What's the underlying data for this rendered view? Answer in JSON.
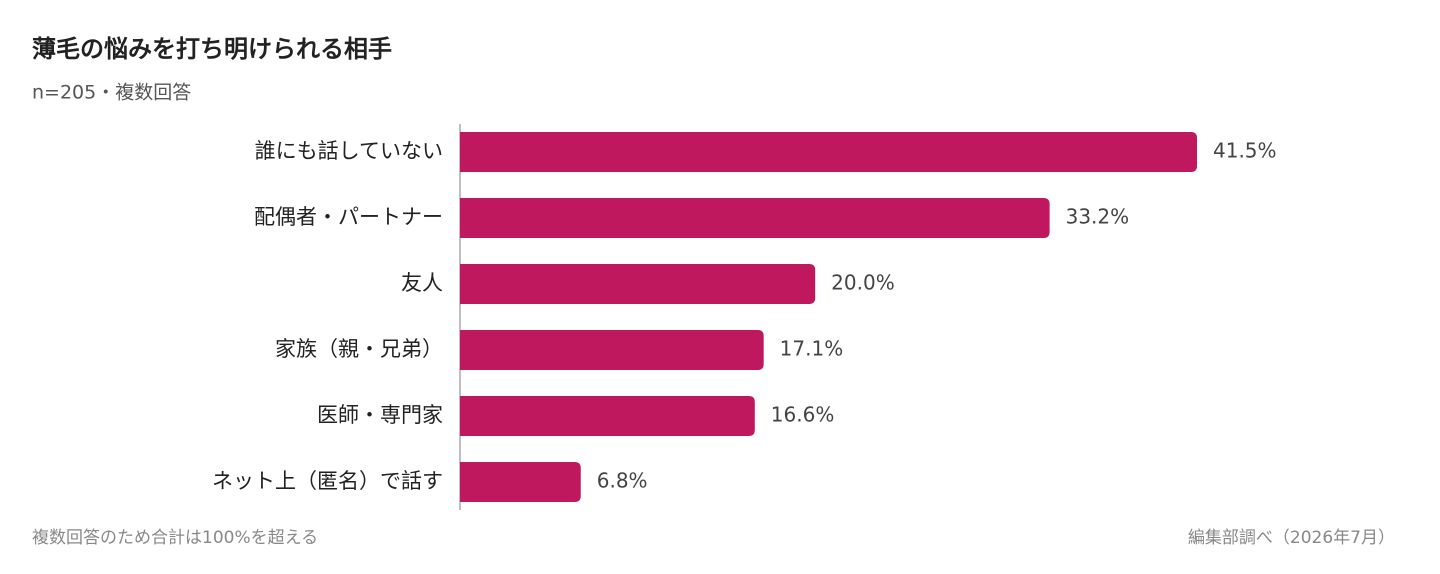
{
  "chart_data": {
    "type": "bar",
    "orientation": "horizontal",
    "title": "薄毛の悩みを打ち明けられる相手",
    "subtitle": "n=205・複数回答",
    "categories": [
      "誰にも話していない",
      "配偶者・パートナー",
      "友人",
      "家族（親・兄弟）",
      "医師・専門家",
      "ネット上（匿名）で話す"
    ],
    "values": [
      41.5,
      33.2,
      20.0,
      17.1,
      16.6,
      6.8
    ],
    "value_labels": [
      "41.5%",
      "33.2%",
      "20.0%",
      "17.1%",
      "16.6%",
      "6.8%"
    ],
    "color": "#c0185e",
    "note": "複数回答のため合計は100%を超える",
    "source": "編集部調べ（2026年7月）"
  }
}
